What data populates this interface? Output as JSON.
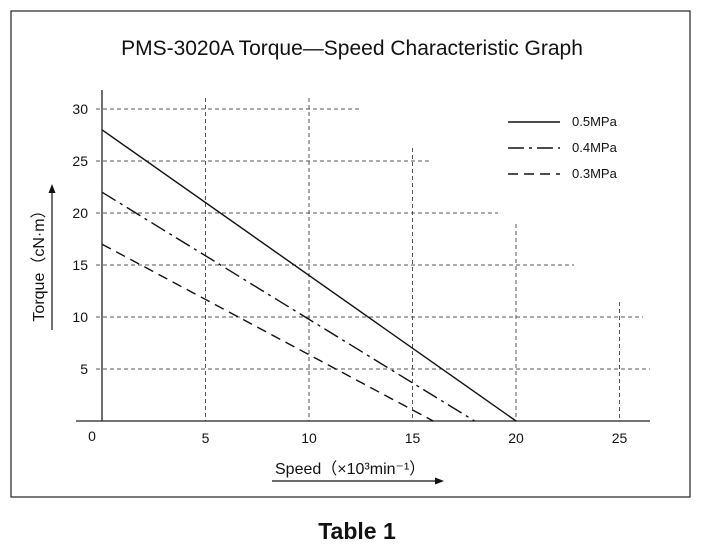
{
  "chart_data": {
    "type": "line",
    "title": "PMS-3020A  Torque—Speed Characteristic Graph",
    "xlabel": "Speed（×10³min⁻¹）",
    "ylabel": "Torque（cN·m）",
    "xlim": [
      0,
      26
    ],
    "ylim": [
      0,
      31
    ],
    "x_ticks": [
      5,
      10,
      15,
      20,
      25
    ],
    "y_ticks": [
      5,
      10,
      15,
      20,
      25,
      30
    ],
    "origin_label": "0",
    "grid": true,
    "legend_position": "top-right",
    "series": [
      {
        "name": "0.5MPa",
        "style": "solid",
        "x": [
          0,
          20
        ],
        "y": [
          28,
          0
        ]
      },
      {
        "name": "0.4MPa",
        "style": "dash-dot",
        "x": [
          0,
          18
        ],
        "y": [
          22,
          0
        ]
      },
      {
        "name": "0.3MPa",
        "style": "dashed",
        "x": [
          0,
          16
        ],
        "y": [
          17,
          0
        ]
      }
    ]
  },
  "caption": "Table 1"
}
